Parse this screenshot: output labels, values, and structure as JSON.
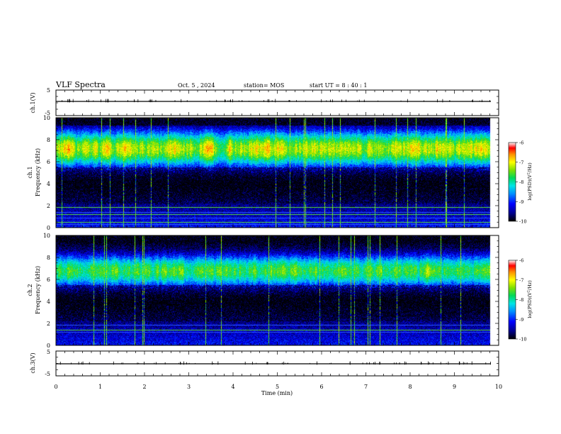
{
  "header": {
    "title": "VLF Spectra",
    "date": "Oct. 5 , 2024",
    "station": "station= MOS",
    "start": "start UT =  8 : 40 : 1"
  },
  "colors": {
    "palette": [
      "#000000",
      "#00008b",
      "#0000ff",
      "#0090ff",
      "#00e5e5",
      "#00d95a",
      "#7fe000",
      "#ffff00",
      "#ff9000",
      "#ff0000",
      "#ffffff"
    ]
  },
  "chart_data": [
    {
      "type": "line",
      "panel": "ch1-voltage",
      "ylabel": "ch.1(V)",
      "ylim": [
        -5,
        5
      ],
      "yticks": [
        5,
        -5
      ],
      "xlim": [
        0,
        10
      ],
      "series": [
        {
          "values_description": "flat near 0 V with sparse small spikes"
        }
      ]
    },
    {
      "type": "heatmap",
      "panel": "ch1-spectrogram",
      "ylabel": "ch.1 Frequency (kHz)",
      "ylim": [
        0,
        10
      ],
      "yticks": [
        0,
        2,
        4,
        6,
        8,
        10
      ],
      "xlim": [
        0,
        10
      ],
      "data_end_min": 9.8,
      "band_center_khz": 7.2,
      "band_halfwidth_khz": 1.9,
      "band_strength": 1.0,
      "lines_khz": [
        0.3,
        0.5,
        0.9,
        1.2,
        1.4,
        1.9
      ],
      "colorbar": {
        "label": "log(PSD)(V^2/Hz)",
        "ticks": [
          -6,
          -7,
          -8,
          -9,
          -10
        ],
        "range": [
          -10,
          -6
        ]
      }
    },
    {
      "type": "heatmap",
      "panel": "ch2-spectrogram",
      "ylabel": "ch.2 Frequency (kHz)",
      "ylim": [
        0,
        10
      ],
      "yticks": [
        0,
        2,
        4,
        6,
        8,
        10
      ],
      "xlim": [
        0,
        10
      ],
      "data_end_min": 9.8,
      "band_center_khz": 6.8,
      "band_halfwidth_khz": 1.7,
      "band_strength": 0.82,
      "lines_khz": [
        1.2,
        1.4,
        1.9
      ],
      "colorbar": {
        "label": "log(PSD)(V^2/Hz)",
        "ticks": [
          -6,
          -7,
          -8,
          -9,
          -10
        ],
        "range": [
          -10,
          -6
        ]
      }
    },
    {
      "type": "line",
      "panel": "ch3-voltage",
      "ylabel": "ch.3(V)",
      "ylim": [
        -5,
        5
      ],
      "yticks": [
        5,
        -5
      ],
      "xlim": [
        0,
        10
      ],
      "series": [
        {
          "values_description": "flat near 0 V with sparse small spikes"
        }
      ]
    }
  ],
  "xaxis": {
    "label": "Time (min)",
    "ticks": [
      "0",
      "1",
      "2",
      "3",
      "4",
      "5",
      "6",
      "7",
      "8",
      "9",
      "10"
    ]
  },
  "labels": {
    "ch1_v": "ch.1(V)",
    "ch1_line1": "ch.1",
    "ch1_line2": "Frequency (kHz)",
    "ch2_line1": "ch.2",
    "ch2_line2": "Frequency (kHz)",
    "ch3_v": "ch.3(V)",
    "cb_label_pre": "log(PSD)(V",
    "cb_label_sup": "2",
    "cb_label_post": "/Hz)"
  }
}
